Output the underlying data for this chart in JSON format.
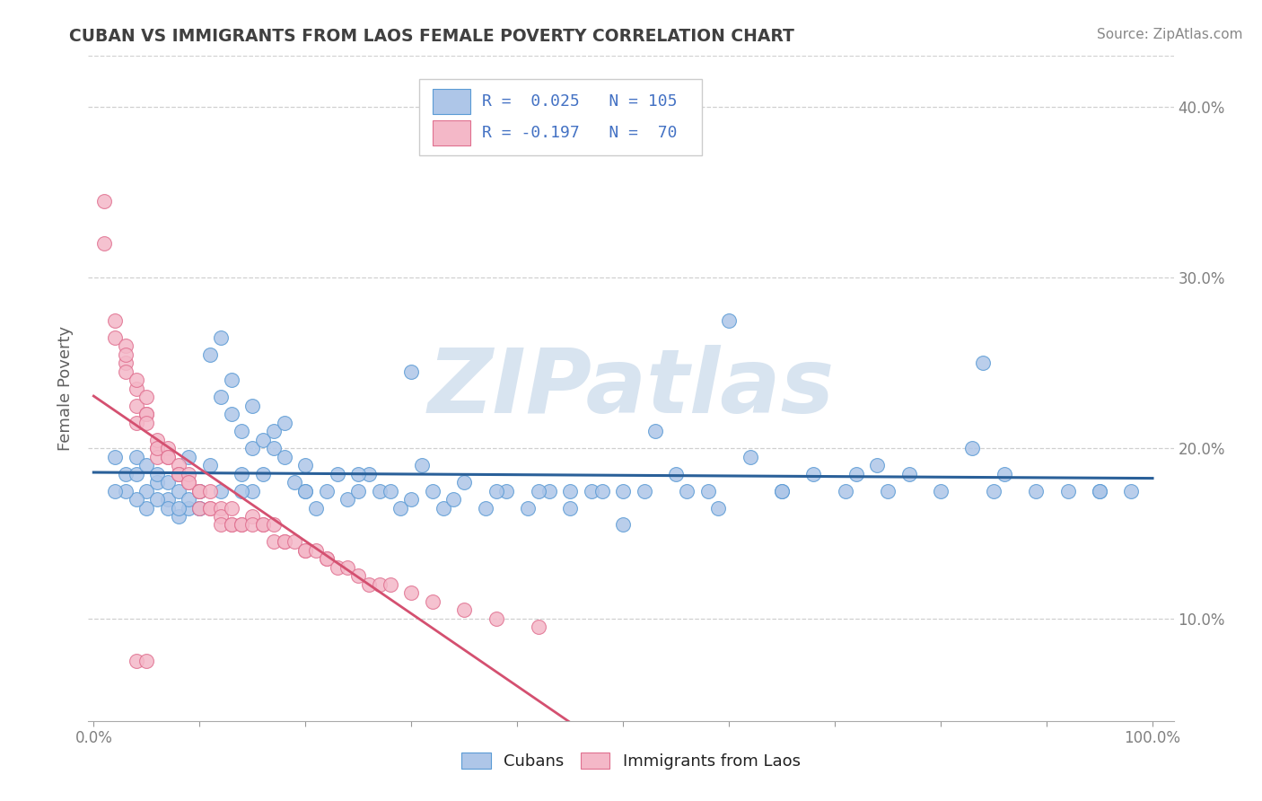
{
  "title": "CUBAN VS IMMIGRANTS FROM LAOS FEMALE POVERTY CORRELATION CHART",
  "source": "Source: ZipAtlas.com",
  "ylabel": "Female Poverty",
  "legend_cubans_R": "0.025",
  "legend_cubans_N": "105",
  "legend_laos_R": "-0.197",
  "legend_laos_N": "70",
  "cubans_color": "#aec6e8",
  "cubans_edge_color": "#5b9bd5",
  "laos_color": "#f4b8c8",
  "laos_edge_color": "#e07090",
  "cubans_line_color": "#2a6099",
  "laos_line_color": "#d45070",
  "watermark_color": "#d8e4f0",
  "watermark_text": "ZIPatlas",
  "background_color": "#ffffff",
  "legend_text_color": "#4472c4",
  "title_color": "#404040",
  "axis_label_color": "#606060",
  "tick_color": "#808080",
  "grid_color": "#d0d0d0",
  "ylim_min": 0.04,
  "ylim_max": 0.43,
  "xlim_min": -0.005,
  "xlim_max": 1.02,
  "cubans_x": [
    0.02,
    0.03,
    0.04,
    0.04,
    0.05,
    0.05,
    0.06,
    0.06,
    0.07,
    0.07,
    0.07,
    0.08,
    0.08,
    0.08,
    0.09,
    0.09,
    0.09,
    0.1,
    0.1,
    0.11,
    0.11,
    0.12,
    0.12,
    0.13,
    0.13,
    0.14,
    0.14,
    0.15,
    0.15,
    0.16,
    0.16,
    0.17,
    0.17,
    0.18,
    0.18,
    0.19,
    0.2,
    0.2,
    0.21,
    0.22,
    0.23,
    0.24,
    0.25,
    0.26,
    0.27,
    0.28,
    0.29,
    0.3,
    0.31,
    0.32,
    0.33,
    0.34,
    0.35,
    0.37,
    0.39,
    0.41,
    0.43,
    0.45,
    0.47,
    0.5,
    0.53,
    0.56,
    0.59,
    0.62,
    0.65,
    0.68,
    0.71,
    0.74,
    0.77,
    0.8,
    0.83,
    0.86,
    0.89,
    0.92,
    0.95,
    0.98,
    0.6,
    0.72,
    0.84,
    0.5,
    0.3,
    0.25,
    0.2,
    0.15,
    0.1,
    0.08,
    0.06,
    0.05,
    0.04,
    0.03,
    0.02,
    0.1,
    0.12,
    0.14,
    0.55,
    0.65,
    0.75,
    0.85,
    0.95,
    0.45,
    0.38,
    0.42,
    0.48,
    0.52,
    0.58
  ],
  "cubans_y": [
    0.195,
    0.185,
    0.185,
    0.195,
    0.175,
    0.19,
    0.18,
    0.185,
    0.18,
    0.17,
    0.165,
    0.175,
    0.185,
    0.16,
    0.165,
    0.17,
    0.195,
    0.165,
    0.175,
    0.19,
    0.255,
    0.23,
    0.265,
    0.24,
    0.22,
    0.185,
    0.21,
    0.2,
    0.225,
    0.185,
    0.205,
    0.2,
    0.21,
    0.195,
    0.215,
    0.18,
    0.19,
    0.175,
    0.165,
    0.175,
    0.185,
    0.17,
    0.175,
    0.185,
    0.175,
    0.175,
    0.165,
    0.17,
    0.19,
    0.175,
    0.165,
    0.17,
    0.18,
    0.165,
    0.175,
    0.165,
    0.175,
    0.165,
    0.175,
    0.175,
    0.21,
    0.175,
    0.165,
    0.195,
    0.175,
    0.185,
    0.175,
    0.19,
    0.185,
    0.175,
    0.2,
    0.185,
    0.175,
    0.175,
    0.175,
    0.175,
    0.275,
    0.185,
    0.25,
    0.155,
    0.245,
    0.185,
    0.175,
    0.175,
    0.165,
    0.165,
    0.17,
    0.165,
    0.17,
    0.175,
    0.175,
    0.175,
    0.175,
    0.175,
    0.185,
    0.175,
    0.175,
    0.175,
    0.175,
    0.175,
    0.175,
    0.175,
    0.175,
    0.175,
    0.175
  ],
  "laos_x": [
    0.01,
    0.01,
    0.02,
    0.02,
    0.03,
    0.03,
    0.03,
    0.03,
    0.04,
    0.04,
    0.04,
    0.04,
    0.05,
    0.05,
    0.05,
    0.05,
    0.06,
    0.06,
    0.06,
    0.06,
    0.07,
    0.07,
    0.07,
    0.08,
    0.08,
    0.08,
    0.09,
    0.09,
    0.09,
    0.1,
    0.1,
    0.1,
    0.11,
    0.11,
    0.11,
    0.12,
    0.12,
    0.12,
    0.13,
    0.13,
    0.13,
    0.14,
    0.14,
    0.15,
    0.15,
    0.16,
    0.16,
    0.17,
    0.17,
    0.18,
    0.18,
    0.19,
    0.2,
    0.2,
    0.21,
    0.22,
    0.22,
    0.23,
    0.24,
    0.25,
    0.26,
    0.27,
    0.28,
    0.3,
    0.32,
    0.35,
    0.38,
    0.42,
    0.04,
    0.05
  ],
  "laos_y": [
    0.345,
    0.32,
    0.265,
    0.275,
    0.25,
    0.26,
    0.255,
    0.245,
    0.235,
    0.225,
    0.215,
    0.24,
    0.22,
    0.23,
    0.22,
    0.215,
    0.2,
    0.205,
    0.195,
    0.2,
    0.2,
    0.195,
    0.195,
    0.19,
    0.185,
    0.185,
    0.18,
    0.185,
    0.18,
    0.175,
    0.175,
    0.165,
    0.175,
    0.165,
    0.165,
    0.165,
    0.16,
    0.155,
    0.165,
    0.155,
    0.155,
    0.155,
    0.155,
    0.16,
    0.155,
    0.155,
    0.155,
    0.155,
    0.145,
    0.145,
    0.145,
    0.145,
    0.14,
    0.14,
    0.14,
    0.135,
    0.135,
    0.13,
    0.13,
    0.125,
    0.12,
    0.12,
    0.12,
    0.115,
    0.11,
    0.105,
    0.1,
    0.095,
    0.075,
    0.075
  ]
}
